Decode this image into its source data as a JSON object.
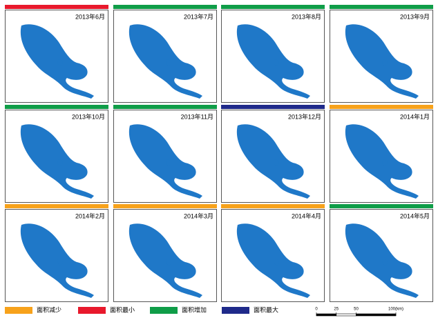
{
  "legend": [
    {
      "label": "面积减少",
      "color": "#f7a21b"
    },
    {
      "label": "面积最小",
      "color": "#e8192c"
    },
    {
      "label": "面积增加",
      "color": "#0f9d48"
    },
    {
      "label": "面积最大",
      "color": "#1f2a8a"
    }
  ],
  "panels": [
    {
      "label": "2013年6月",
      "status": 1
    },
    {
      "label": "2013年7月",
      "status": 2
    },
    {
      "label": "2013年8月",
      "status": 2
    },
    {
      "label": "2013年9月",
      "status": 2
    },
    {
      "label": "2013年10月",
      "status": 2
    },
    {
      "label": "2013年11月",
      "status": 2
    },
    {
      "label": "2013年12月",
      "status": 3
    },
    {
      "label": "2014年1月",
      "status": 0
    },
    {
      "label": "2014年2月",
      "status": 0
    },
    {
      "label": "2014年3月",
      "status": 0
    },
    {
      "label": "2014年4月",
      "status": 0
    },
    {
      "label": "2014年5月",
      "status": 2
    }
  ],
  "scale": {
    "ticks": [
      0,
      25,
      50,
      {
        "value": 100,
        "label": "100(km)"
      }
    ]
  }
}
